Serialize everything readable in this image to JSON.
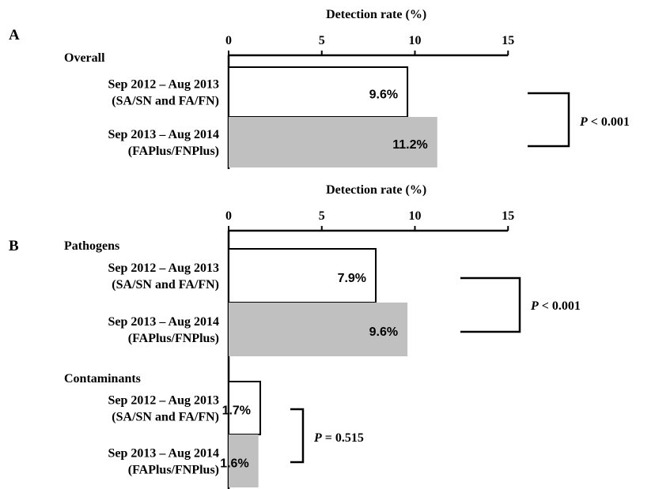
{
  "chart_data": [
    {
      "type": "bar",
      "orientation": "horizontal",
      "panel_label": "A",
      "xlabel": "Detection rate (%)",
      "xlim": [
        0,
        15
      ],
      "xticks": [
        0,
        5,
        10,
        15
      ],
      "groups": [
        {
          "label": "Overall",
          "bars": [
            {
              "category": "Sep 2012 – Aug 2013",
              "category_sub": "(SA/SN and FA/FN)",
              "value": 9.6,
              "value_label": "9.6%",
              "color": "#ffffff"
            },
            {
              "category": "Sep 2013 – Aug 2014",
              "category_sub": "(FAPlus/FNPlus)",
              "value": 11.2,
              "value_label": "11.2%",
              "color": "#c0c0c0"
            }
          ],
          "p_label": "P",
          "p_text": " < 0.001"
        }
      ]
    },
    {
      "type": "bar",
      "orientation": "horizontal",
      "panel_label": "B",
      "xlabel": "Detection rate (%)",
      "xlim": [
        0,
        15
      ],
      "xticks": [
        0,
        5,
        10,
        15
      ],
      "groups": [
        {
          "label": "Pathogens",
          "bars": [
            {
              "category": "Sep 2012 – Aug 2013",
              "category_sub": "(SA/SN and FA/FN)",
              "value": 7.9,
              "value_label": "7.9%",
              "color": "#ffffff"
            },
            {
              "category": "Sep 2013 – Aug 2014",
              "category_sub": "(FAPlus/FNPlus)",
              "value": 9.6,
              "value_label": "9.6%",
              "color": "#c0c0c0"
            }
          ],
          "p_label": "P",
          "p_text": " < 0.001"
        },
        {
          "label": "Contaminants",
          "bars": [
            {
              "category": "Sep 2012 – Aug 2013",
              "category_sub": "(SA/SN and FA/FN)",
              "value": 1.7,
              "value_label": "1.7%",
              "color": "#ffffff"
            },
            {
              "category": "Sep 2013 – Aug 2014",
              "category_sub": "(FAPlus/FNPlus)",
              "value": 1.6,
              "value_label": "1.6%",
              "color": "#c0c0c0"
            }
          ],
          "p_label": "P",
          "p_text": " = 0.515"
        }
      ]
    }
  ]
}
